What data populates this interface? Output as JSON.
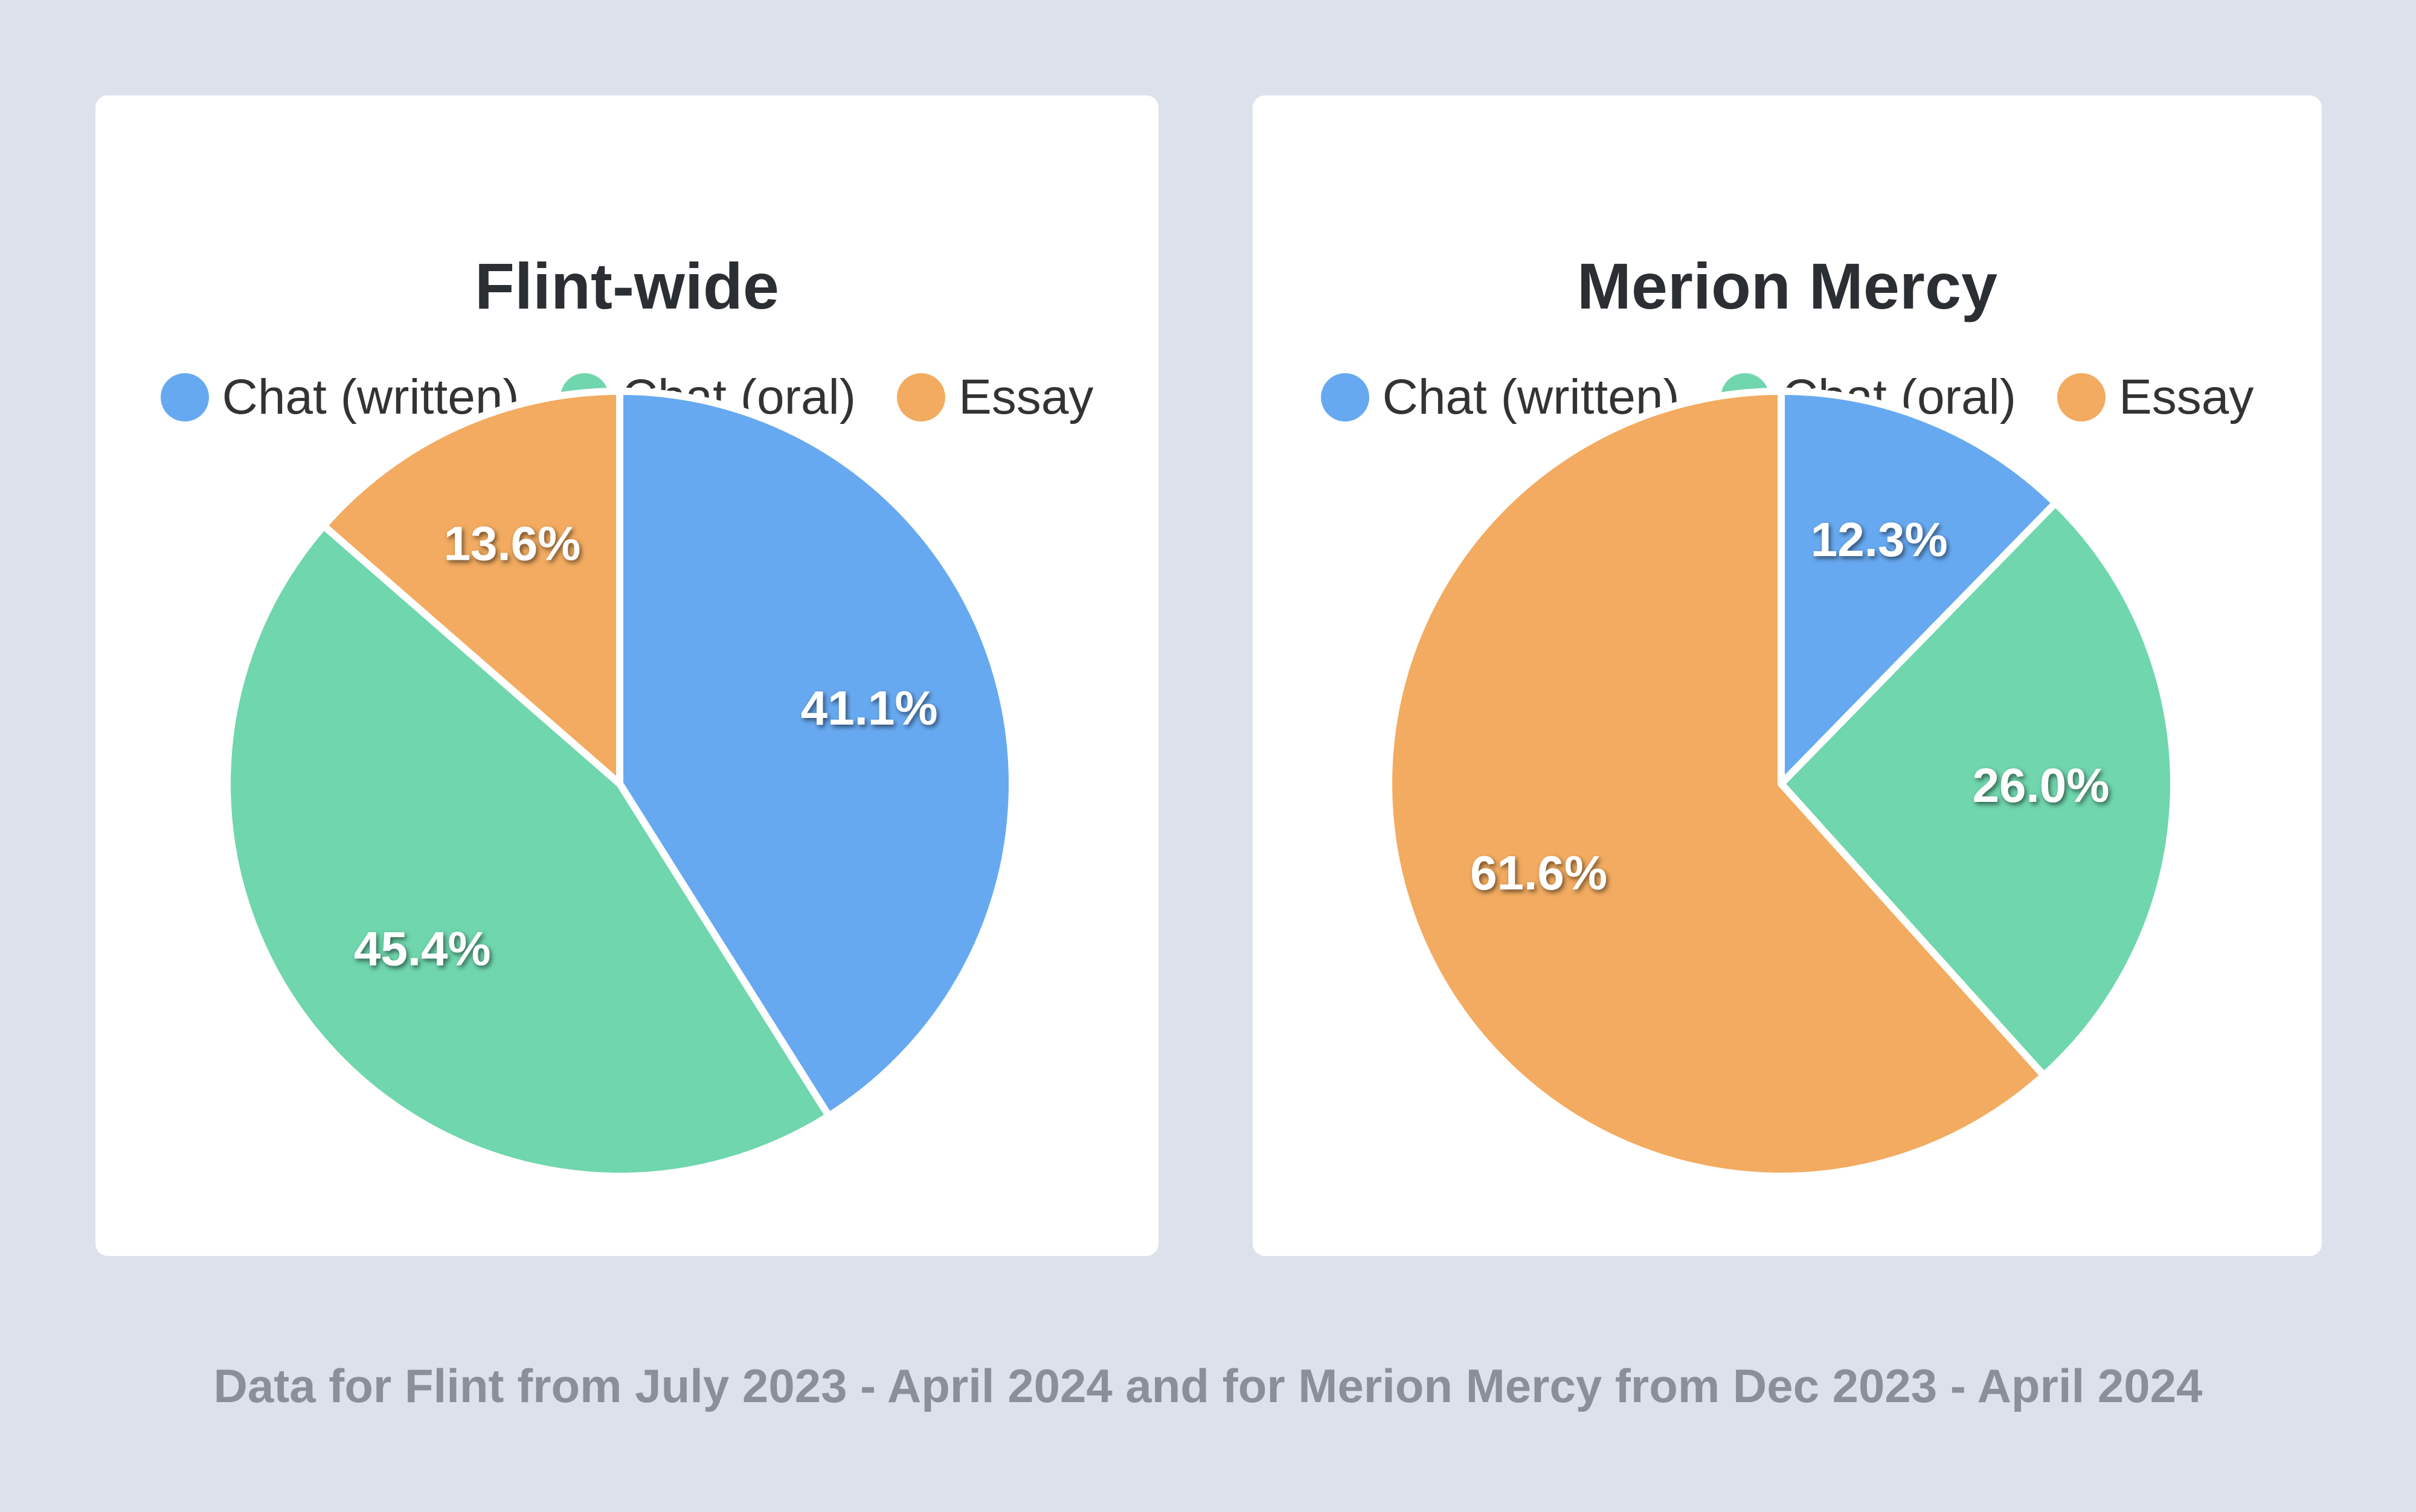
{
  "chart_data": [
    {
      "type": "pie",
      "title": "Flint-wide",
      "legend_position": "top",
      "slices": [
        {
          "label": "Chat (written)",
          "value": 41.1,
          "color": "#67a9f1"
        },
        {
          "label": "Chat (oral)",
          "value": 45.4,
          "color": "#6fd6ad"
        },
        {
          "label": "Essay",
          "value": 13.6,
          "color": "#f2ab60"
        }
      ]
    },
    {
      "type": "pie",
      "title": "Merion Mercy",
      "legend_position": "top",
      "slices": [
        {
          "label": "Chat (written)",
          "value": 12.3,
          "color": "#67a9f1"
        },
        {
          "label": "Chat (oral)",
          "value": 26.0,
          "color": "#6fd6ad"
        },
        {
          "label": "Essay",
          "value": 61.6,
          "color": "#f2ab60"
        }
      ]
    }
  ],
  "footnote": "Data for Flint from July 2023 - April 2024 and for Merion Mercy from Dec 2023 - April 2024"
}
